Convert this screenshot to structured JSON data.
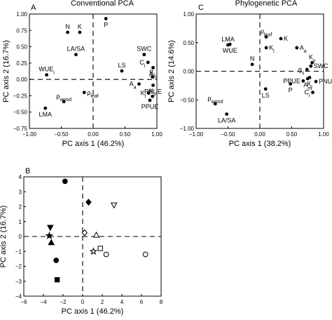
{
  "chart_data": [
    {
      "panel_label": "A",
      "title": "Conventional PCA",
      "type": "scatter",
      "xlabel": "PC axis 1 (46.2%)",
      "ylabel": "PC axis 2 (16.7%)",
      "xlim": [
        -1.0,
        1.0
      ],
      "ylim": [
        -0.75,
        1.0
      ],
      "xticks": [
        "−1.00",
        "−0.50",
        "0.00",
        "0.50",
        "1.00"
      ],
      "yticks": [
        "1.00",
        "0.75",
        "0.50",
        "0.25",
        "0.00",
        "−0.25",
        "−0.50",
        "−0.75"
      ],
      "xtick_values": [
        -1.0,
        -0.5,
        0.0,
        0.5,
        1.0
      ],
      "ytick_values": [
        1.0,
        0.75,
        0.5,
        0.25,
        0.0,
        -0.25,
        -0.5,
        -0.75
      ],
      "dashed_zero_lines": true,
      "points": [
        {
          "label": "P",
          "x": 0.2,
          "y": 0.93,
          "anchor": "below"
        },
        {
          "label": "N",
          "x": -0.4,
          "y": 0.72,
          "anchor": "above"
        },
        {
          "label": "K",
          "x": -0.21,
          "y": 0.72,
          "anchor": "above"
        },
        {
          "label": "LA/SA",
          "x": -0.27,
          "y": 0.38,
          "anchor": "above"
        },
        {
          "label": "SWC",
          "x": 0.8,
          "y": 0.38,
          "anchor": "above"
        },
        {
          "label": "C",
          "sub": "i",
          "x": 0.86,
          "y": 0.26,
          "anchor": "left"
        },
        {
          "label": "LS",
          "x": 0.45,
          "y": 0.13,
          "anchor": "above"
        },
        {
          "label": "A",
          "sub": "m",
          "x": 0.94,
          "y": 0.18,
          "anchor": "below"
        },
        {
          "label": "g",
          "sub": "s",
          "x": 0.93,
          "y": 0.04,
          "anchor": "above"
        },
        {
          "label": "A",
          "sub": "a",
          "x": 0.72,
          "y": -0.07,
          "anchor": "left"
        },
        {
          "label": "PNUE",
          "x": 0.94,
          "y": -0.09,
          "anchor": "below"
        },
        {
          "label": "K",
          "sub": "l",
          "x": 0.87,
          "y": -0.21,
          "anchor": "left"
        },
        {
          "label": "K",
          "sub": "s",
          "x": 0.93,
          "y": -0.26,
          "anchor": "above"
        },
        {
          "label": "PPUE",
          "x": 0.89,
          "y": -0.32,
          "anchor": "below"
        },
        {
          "label": "WUE",
          "sub": "i",
          "x": -0.73,
          "y": 0.07,
          "anchor": "above"
        },
        {
          "label": "ρ",
          "sub": "leaf",
          "x": -0.14,
          "y": -0.2,
          "anchor": "right"
        },
        {
          "label": "ρ",
          "sub": "wood",
          "x": -0.46,
          "y": -0.34,
          "anchor": "above"
        },
        {
          "label": "LMA",
          "x": -0.75,
          "y": -0.44,
          "anchor": "below"
        }
      ]
    },
    {
      "panel_label": "C",
      "title": "Phylogenetic PCA",
      "type": "scatter",
      "xlabel": "PC axis 1 (38.2%)",
      "ylabel": "PC axis 2 (14.6%)",
      "xlim": [
        -1.0,
        1.0
      ],
      "ylim": [
        -1.0,
        1.0
      ],
      "xticks": [
        "−1.00",
        "−0.50",
        "0.00",
        "0.50",
        "1.00"
      ],
      "yticks": [
        "1.00",
        "0.50",
        "0.00",
        "−0.50",
        "−1.00"
      ],
      "xtick_values": [
        -1.0,
        -0.5,
        0.0,
        0.5,
        1.0
      ],
      "ytick_values": [
        1.0,
        0.5,
        0.0,
        -0.5,
        -1.0
      ],
      "dashed_zero_lines": true,
      "points": [
        {
          "label": "LMA",
          "x": -0.5,
          "y": 0.46,
          "anchor": "above"
        },
        {
          "label": "WUE",
          "x": -0.47,
          "y": 0.47,
          "anchor": "below"
        },
        {
          "label": "ρ",
          "sub": "leaf",
          "x": 0.1,
          "y": 0.6,
          "anchor": "above"
        },
        {
          "label": "K",
          "x": 0.33,
          "y": 0.57,
          "anchor": "right"
        },
        {
          "label": "K",
          "sub": "l",
          "x": 0.1,
          "y": 0.41,
          "anchor": "right"
        },
        {
          "label": "A",
          "sub": "a",
          "x": 0.58,
          "y": 0.41,
          "anchor": "right"
        },
        {
          "label": "N",
          "x": -0.12,
          "y": 0.12,
          "anchor": "above"
        },
        {
          "label": "K",
          "sub": "s",
          "x": 0.82,
          "y": 0.15,
          "anchor": "above"
        },
        {
          "label": "SWC",
          "x": 0.8,
          "y": 0.09,
          "anchor": "right"
        },
        {
          "label": "g",
          "sub": "s",
          "x": 0.74,
          "y": 0.03,
          "anchor": "left"
        },
        {
          "label": "PPUE",
          "x": 0.68,
          "y": -0.17,
          "anchor": "left"
        },
        {
          "label": "PNUE",
          "x": 0.88,
          "y": -0.18,
          "anchor": "right"
        },
        {
          "label": "K",
          "sub": "l",
          "x": 0.78,
          "y": -0.11,
          "anchor": "below"
        },
        {
          "label": "A",
          "sub": "m",
          "x": 0.75,
          "y": -0.13,
          "anchor": "below"
        },
        {
          "label": "LS",
          "x": 0.09,
          "y": -0.31,
          "anchor": "below"
        },
        {
          "label": "P",
          "x": 0.48,
          "y": -0.22,
          "anchor": "below"
        },
        {
          "label": "C",
          "sub": "i",
          "x": 0.83,
          "y": -0.37,
          "anchor": "left"
        },
        {
          "label": "ρ",
          "sub": "wood",
          "x": -0.7,
          "y": -0.57,
          "anchor": "above"
        },
        {
          "label": "LA/SA",
          "x": -0.52,
          "y": -0.75,
          "anchor": "below"
        }
      ]
    },
    {
      "panel_label": "B",
      "title": "",
      "type": "scatter",
      "xlabel": "PC axis 1 (46.2%)",
      "ylabel": "PC axis 2 (16.7%)",
      "xlim": [
        -6,
        8
      ],
      "ylim": [
        -4,
        4
      ],
      "xticks": [
        "−6",
        "−4",
        "−2",
        "0",
        "2",
        "4",
        "6",
        "8"
      ],
      "yticks": [
        "4",
        "3",
        "2",
        "1",
        "0",
        "−1",
        "−2",
        "−3",
        "−4"
      ],
      "xtick_values": [
        -6,
        -4,
        -2,
        0,
        2,
        4,
        6,
        8
      ],
      "ytick_values": [
        4,
        3,
        2,
        1,
        0,
        -1,
        -2,
        -3,
        -4
      ],
      "dashed_zero_lines": true,
      "points": [
        {
          "marker": "circle",
          "filled": true,
          "x": -1.8,
          "y": 3.7
        },
        {
          "marker": "diamond",
          "filled": true,
          "x": 0.6,
          "y": 2.3
        },
        {
          "marker": "triangle-down",
          "filled": false,
          "x": 3.2,
          "y": 2.1
        },
        {
          "marker": "triangle-down",
          "filled": true,
          "x": -3.3,
          "y": 0.6
        },
        {
          "marker": "star",
          "filled": true,
          "x": -3.4,
          "y": 0.05
        },
        {
          "marker": "triangle-up",
          "filled": true,
          "x": -3.2,
          "y": -0.4
        },
        {
          "marker": "diamond",
          "filled": false,
          "x": 0.2,
          "y": 0.25
        },
        {
          "marker": "triangle-up",
          "filled": false,
          "x": 1.4,
          "y": 0.1
        },
        {
          "marker": "square",
          "filled": false,
          "x": 1.8,
          "y": -0.8
        },
        {
          "marker": "star",
          "filled": false,
          "x": 1.1,
          "y": -1.0
        },
        {
          "marker": "circle",
          "filled": false,
          "x": 2.4,
          "y": -1.2
        },
        {
          "marker": "circle",
          "filled": false,
          "x": 6.4,
          "y": -1.2
        },
        {
          "marker": "circle",
          "filled": true,
          "x": -2.7,
          "y": -1.6
        },
        {
          "marker": "square",
          "filled": true,
          "x": -2.6,
          "y": -2.9
        }
      ]
    }
  ]
}
